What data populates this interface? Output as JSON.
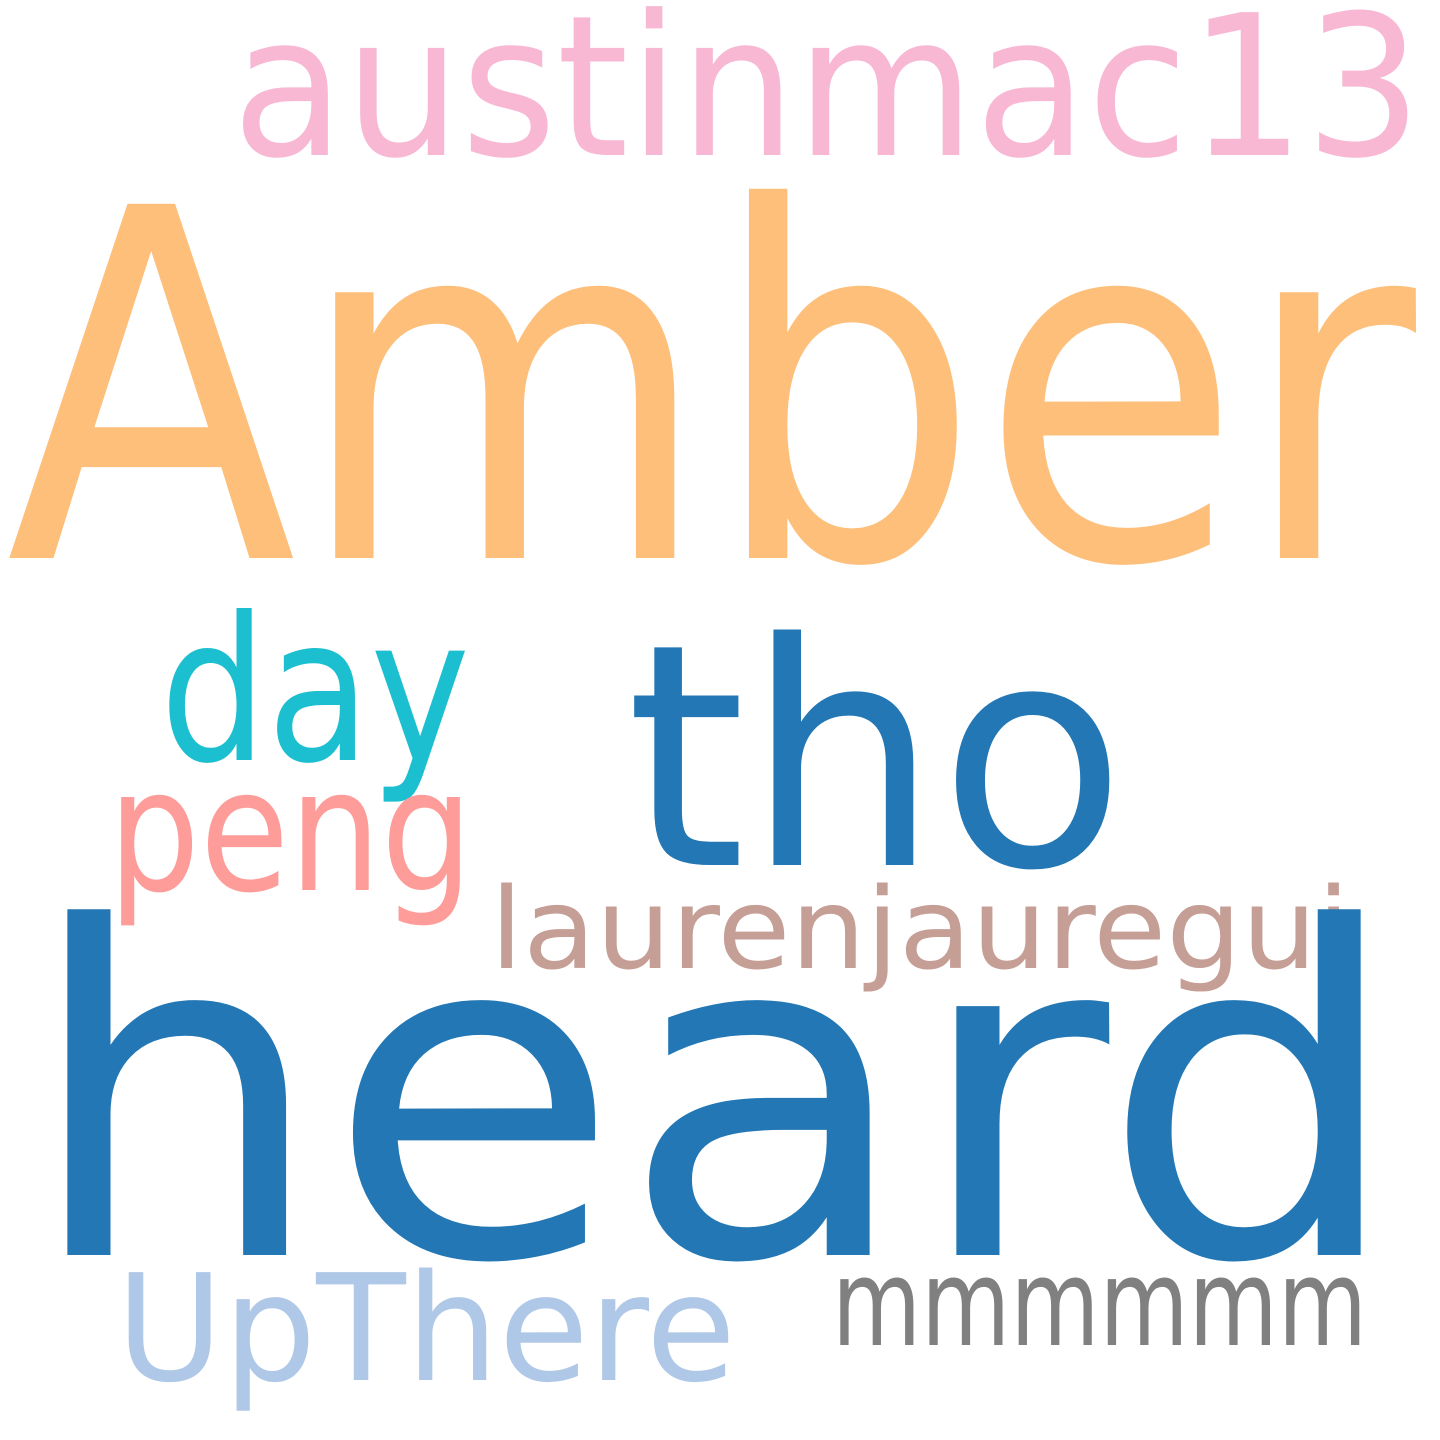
{
  "words": [
    {
      "id": "amber",
      "text": "Amber",
      "color": "#fdbf7a"
    },
    {
      "id": "heard",
      "text": "heard",
      "color": "#2277b4"
    },
    {
      "id": "tho",
      "text": "tho",
      "color": "#2277b4"
    },
    {
      "id": "austinmac13",
      "text": "austinmac13",
      "color": "#f8b8d4"
    },
    {
      "id": "day",
      "text": "day",
      "color": "#1bbfcf"
    },
    {
      "id": "peng",
      "text": "peng",
      "color": "#fe9c9a"
    },
    {
      "id": "laurenjauregui",
      "text": "laurenjauregui",
      "color": "#c59e95"
    },
    {
      "id": "upthere",
      "text": "UpThere",
      "color": "#b0c8e8"
    },
    {
      "id": "mmmmmm",
      "text": "mmmmmm",
      "color": "#808080"
    }
  ]
}
